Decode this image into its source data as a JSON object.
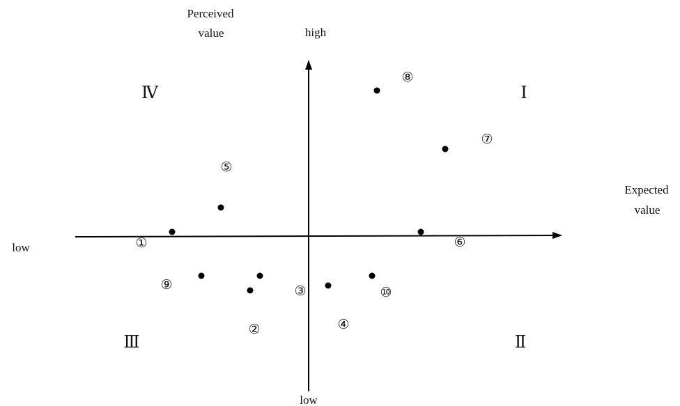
{
  "labels": {
    "y_axis_title_line1": "Perceived",
    "y_axis_title_line2": "value",
    "y_high": "high",
    "y_low": "low",
    "x_axis_title_line1": "Expected",
    "x_axis_title_line2": "value",
    "x_low": "low"
  },
  "quadrants": {
    "I": "Ⅰ",
    "II": "Ⅱ",
    "III": "Ⅲ",
    "IV": "Ⅳ"
  },
  "points": [
    {
      "id": "①",
      "x": -2.8,
      "y": 0.1
    },
    {
      "id": "②",
      "x": -1.2,
      "y": -1.1
    },
    {
      "id": "③",
      "x": -1.0,
      "y": -0.8
    },
    {
      "id": "④",
      "x": 0.4,
      "y": -1.0
    },
    {
      "id": "⑤",
      "x": -1.8,
      "y": 0.6
    },
    {
      "id": "⑥",
      "x": 2.3,
      "y": 0.1
    },
    {
      "id": "⑦",
      "x": 2.8,
      "y": 1.8
    },
    {
      "id": "⑧",
      "x": 1.4,
      "y": 3.0
    },
    {
      "id": "⑨",
      "x": -2.2,
      "y": -0.8
    },
    {
      "id": "⑩",
      "x": 1.3,
      "y": -0.8
    }
  ]
}
